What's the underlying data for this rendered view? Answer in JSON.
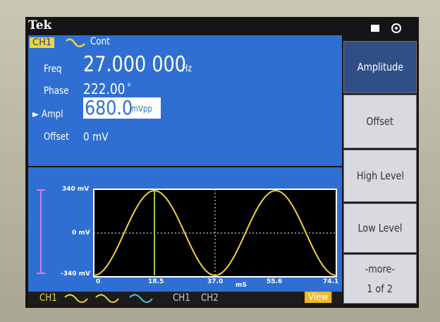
{
  "header": {
    "brand": "Tek",
    "channel": "CH1",
    "mode": "Cont"
  },
  "params": [
    {
      "label": "Freq",
      "value": "27.000 000",
      "unit": "Hz"
    },
    {
      "label": "Phase",
      "value": "222.00",
      "unit": "°"
    },
    {
      "label": "Ampl",
      "value": "680.0",
      "unit": "mVpp"
    },
    {
      "label": "Offset",
      "value": "0 mV"
    }
  ],
  "plot": {
    "y_labels": [
      "340 mV",
      "0 mV",
      "-340 mV"
    ],
    "x_labels": [
      "0",
      "18.5",
      "37.0",
      "55.6",
      "74.1"
    ],
    "x_unit": "mS"
  },
  "tabs": [
    "CH1",
    "CH1",
    "CH2",
    "View"
  ],
  "softkeys": [
    "Amplitude",
    "Offset",
    "High Level",
    "Low Level",
    "-more-",
    "1 of 2"
  ]
}
